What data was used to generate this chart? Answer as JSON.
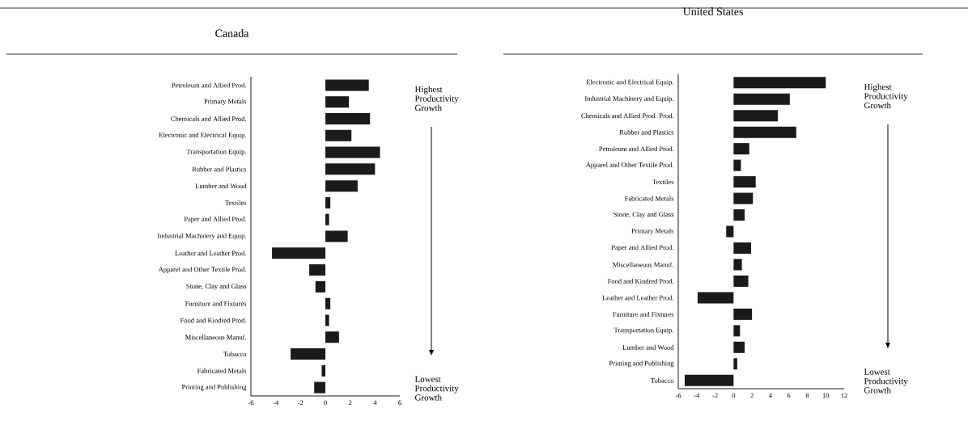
{
  "chart_data": [
    {
      "type": "bar",
      "orientation": "horizontal",
      "title": "Canada",
      "color": "#1a1a1a",
      "categories": [
        "Petroleum and Allied Prod.",
        "Primary Metals",
        "Chemicals and Allied Prod.",
        "Electronic and Electrical Equip.",
        "Transportation Equip.",
        "Rubber and Plastics",
        "Lumber and Wood",
        "Textiles",
        "Paper and Allied Prod.",
        "Industrial Machinery and Equip.",
        "Leather and Leather Prod.",
        "Apparel and Other Textile Prod.",
        "Stone, Clay and Glass",
        "Furniture and Fixtures",
        "Food and Kindred Prod.",
        "Miscellaneous Manuf.",
        "Tobacco",
        "Fabricated Metals",
        "Printing and Publishing"
      ],
      "values": [
        3.5,
        1.9,
        3.6,
        2.1,
        4.4,
        4.0,
        2.6,
        0.4,
        0.3,
        1.8,
        -4.3,
        -1.3,
        -0.8,
        0.4,
        0.3,
        1.1,
        -2.8,
        -0.3,
        -0.9
      ],
      "xlim": [
        -6,
        6
      ],
      "xticks": [
        -6,
        -4,
        -2,
        0,
        2,
        4,
        6
      ],
      "annotations": [
        "Highest Productivity Growth",
        "Lowest Productivity Growth"
      ]
    },
    {
      "type": "bar",
      "orientation": "horizontal",
      "title": "United States",
      "color": "#1a1a1a",
      "categories": [
        "Electronic and Electrical Equip.",
        "Industrial Machinery and Equip.",
        "Chemicals and Allied Prod. Prod.",
        "Rubber and Plastics",
        "Petroleum and Allied Prod.",
        "Apparel and Other Textile Prod.",
        "Textiles",
        "Fabricated Metals",
        "Stone, Clay and Glass",
        "Primary Metals",
        "Paper and Allied Prod.",
        "Miscellaneous Manuf.",
        "Food and Kindred Prod.",
        "Leather and Leather Prod.",
        "Furniture and Fixtures",
        "Transportation Equip.",
        "Lumber and Wood",
        "Printing and Publishing",
        "Tobacco"
      ],
      "values": [
        10.0,
        6.1,
        4.8,
        6.8,
        1.7,
        0.8,
        2.4,
        2.1,
        1.2,
        -0.8,
        1.9,
        0.9,
        1.6,
        -3.9,
        2.0,
        0.7,
        1.2,
        0.4,
        -5.3
      ],
      "xlim": [
        -6,
        12
      ],
      "xticks": [
        -6,
        -4,
        -2,
        0,
        2,
        4,
        6,
        8,
        10,
        12
      ],
      "annotations": [
        "Highest Productivity Growth",
        "Lowest Productivity Growth"
      ]
    }
  ]
}
